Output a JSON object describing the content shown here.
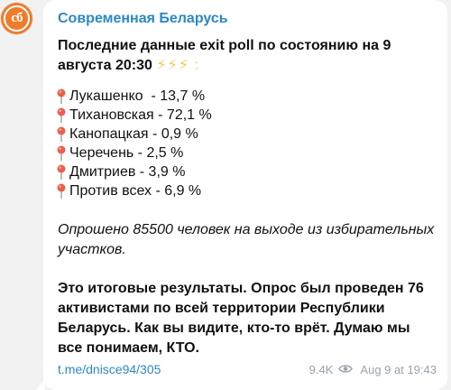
{
  "channel": {
    "avatar_text": "сб",
    "name": "Современная Беларусь"
  },
  "post": {
    "title": "Последние данные exit poll по состоянию на 9 августа 20:30",
    "title_suffix": "⚡⚡⚡ :",
    "results": [
      {
        "text": "Лукашенко  - 13,7 %"
      },
      {
        "text": "Тихановская - 72,1 %"
      },
      {
        "text": "Канопацкая - 0,9 %"
      },
      {
        "text": "Черечень - 2,5 %"
      },
      {
        "text": "Дмитриев - 3,9 %"
      },
      {
        "text": "Против всех - 6,9 %"
      }
    ],
    "note": "Опрошено 85500 человек на выходе из избирательных участков.",
    "summary": "Это итоговые результаты. Опрос был проведен 76 активистами по всей территории Республики Беларусь. Как вы видите, кто-то врёт. Думаю мы все понимаем, КТО.",
    "link": "t.me/dnisce94/305",
    "views": "9.4K",
    "timestamp": "Aug 9 at 19:43"
  },
  "colors": {
    "accent": "#2c88c4",
    "avatar": "#f07b2a",
    "pin": "#e8604c",
    "meta": "#9aa3ab"
  },
  "icons": {
    "pin": "round-pushpin-icon",
    "views": "eye-icon"
  }
}
